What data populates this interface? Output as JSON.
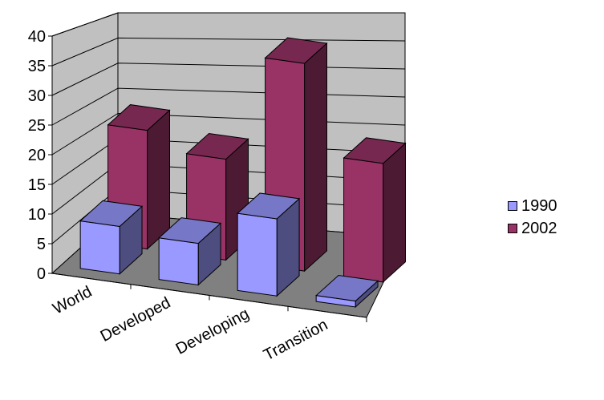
{
  "chart_data": {
    "type": "bar",
    "title": "",
    "xlabel": "",
    "ylabel": "",
    "categories": [
      "World",
      "Developed",
      "Developing",
      "Transition"
    ],
    "series": [
      {
        "name": "1990",
        "values": [
          8,
          7,
          13,
          1
        ],
        "color": "#9999ff"
      },
      {
        "name": "2002",
        "values": [
          20,
          17,
          35,
          20
        ],
        "color": "#993366"
      }
    ],
    "ylim": [
      0,
      40
    ],
    "yticks": [
      "0",
      "5",
      "10",
      "15",
      "20",
      "25",
      "30",
      "35",
      "40"
    ],
    "grid": true,
    "legend_position": "right"
  }
}
